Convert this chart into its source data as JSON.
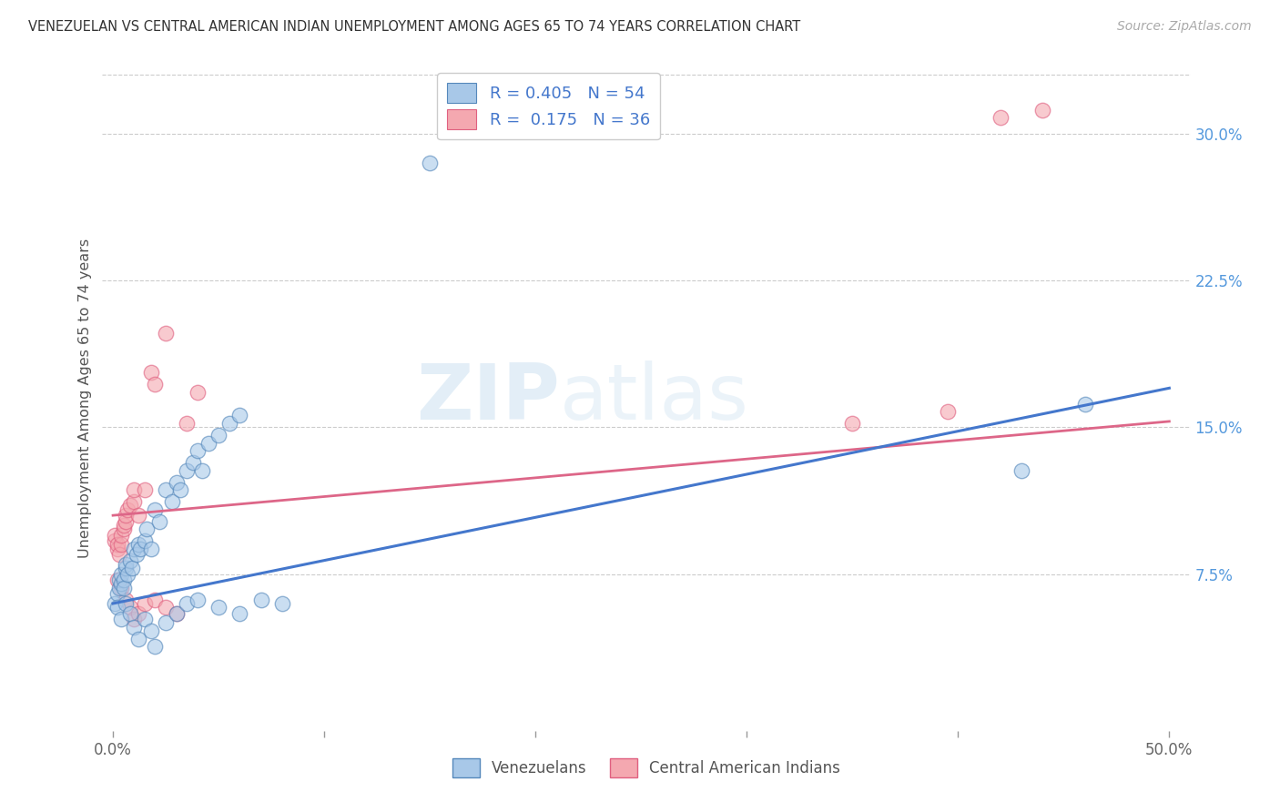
{
  "title": "VENEZUELAN VS CENTRAL AMERICAN INDIAN UNEMPLOYMENT AMONG AGES 65 TO 74 YEARS CORRELATION CHART",
  "source": "Source: ZipAtlas.com",
  "ylabel": "Unemployment Among Ages 65 to 74 years",
  "xlim": [
    -0.005,
    0.51
  ],
  "ylim": [
    -0.005,
    0.335
  ],
  "xtick_vals": [
    0.0,
    0.1,
    0.2,
    0.3,
    0.4,
    0.5
  ],
  "xticklabels_show": [
    "0.0%",
    "",
    "",
    "",
    "",
    "50.0%"
  ],
  "ytick_vals": [
    0.075,
    0.15,
    0.225,
    0.3
  ],
  "yticklabels": [
    "7.5%",
    "15.0%",
    "22.5%",
    "30.0%"
  ],
  "legend_r1": "R = 0.405",
  "legend_n1": "N = 54",
  "legend_r2": "R =  0.175",
  "legend_n2": "N = 36",
  "blue_fill": "#a8c8e8",
  "blue_edge": "#5588bb",
  "pink_fill": "#f4a8b0",
  "pink_edge": "#e06080",
  "blue_line": "#4477cc",
  "pink_line": "#dd6688",
  "watermark_zip": "ZIP",
  "watermark_atlas": "atlas",
  "background_color": "#ffffff",
  "venezuelan_x": [
    0.001,
    0.002,
    0.003,
    0.003,
    0.004,
    0.004,
    0.005,
    0.005,
    0.006,
    0.006,
    0.007,
    0.008,
    0.009,
    0.01,
    0.011,
    0.012,
    0.013,
    0.015,
    0.016,
    0.018,
    0.02,
    0.022,
    0.025,
    0.028,
    0.03,
    0.032,
    0.035,
    0.038,
    0.04,
    0.042,
    0.045,
    0.05,
    0.055,
    0.06,
    0.002,
    0.004,
    0.006,
    0.008,
    0.01,
    0.012,
    0.015,
    0.018,
    0.02,
    0.025,
    0.03,
    0.035,
    0.04,
    0.05,
    0.06,
    0.07,
    0.08,
    0.15,
    0.43,
    0.46
  ],
  "venezuelan_y": [
    0.06,
    0.065,
    0.068,
    0.072,
    0.07,
    0.075,
    0.072,
    0.068,
    0.078,
    0.08,
    0.075,
    0.082,
    0.078,
    0.088,
    0.085,
    0.09,
    0.088,
    0.092,
    0.098,
    0.088,
    0.108,
    0.102,
    0.118,
    0.112,
    0.122,
    0.118,
    0.128,
    0.132,
    0.138,
    0.128,
    0.142,
    0.146,
    0.152,
    0.156,
    0.058,
    0.052,
    0.06,
    0.055,
    0.048,
    0.042,
    0.052,
    0.046,
    0.038,
    0.05,
    0.055,
    0.06,
    0.062,
    0.058,
    0.055,
    0.062,
    0.06,
    0.285,
    0.128,
    0.162
  ],
  "central_x": [
    0.001,
    0.001,
    0.002,
    0.002,
    0.003,
    0.004,
    0.004,
    0.005,
    0.005,
    0.006,
    0.006,
    0.007,
    0.008,
    0.01,
    0.01,
    0.012,
    0.015,
    0.018,
    0.02,
    0.025,
    0.002,
    0.004,
    0.006,
    0.008,
    0.01,
    0.012,
    0.015,
    0.02,
    0.025,
    0.03,
    0.035,
    0.04,
    0.35,
    0.395,
    0.42,
    0.44
  ],
  "central_y": [
    0.092,
    0.095,
    0.088,
    0.09,
    0.085,
    0.09,
    0.095,
    0.098,
    0.1,
    0.102,
    0.105,
    0.108,
    0.11,
    0.112,
    0.118,
    0.105,
    0.118,
    0.178,
    0.172,
    0.198,
    0.072,
    0.068,
    0.062,
    0.058,
    0.052,
    0.055,
    0.06,
    0.062,
    0.058,
    0.055,
    0.152,
    0.168,
    0.152,
    0.158,
    0.308,
    0.312
  ],
  "blue_trend": [
    0.0,
    0.06,
    0.5,
    0.17
  ],
  "pink_trend": [
    0.0,
    0.105,
    0.5,
    0.153
  ]
}
